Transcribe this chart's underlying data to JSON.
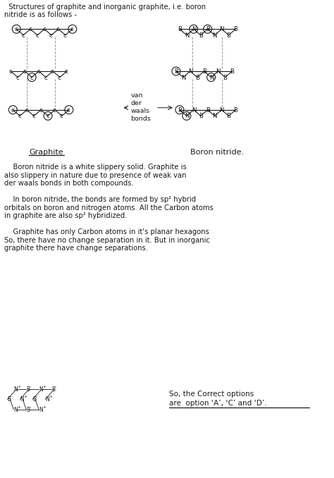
{
  "page_color": "#ffffff",
  "text_color": "#1a1a1a",
  "line_color": "#1a1a1a",
  "dashed_color": "#999999",
  "title_line1": "  Structures of graphite and inorganic graphite, i.e. boron",
  "title_line2": "nitride is as follows -",
  "graphite_label": "Graphite",
  "bn_label": "Boron nitride.",
  "para1": "    Boron nitride is a white slippery solid. Graphite is\nalso slippery in nature due to presence of weak van\nder waals bonds in both compounds.",
  "para2": "    In boron nitride, the bonds are formed by sp² hybrid\norbitals on boron and nitrogen atoms. All the Carbon atoms\nin graphite are also sp² hybridized.",
  "para3": "    Graphite has only Carbon atoms in it's planar hexagons\nSo, there have no change separation in it. But in inorganic\ngraphite there have change separations.",
  "ans1": "So, the Correct options",
  "ans2": "are  option ‘A’, ‘C’ and ‘D’."
}
